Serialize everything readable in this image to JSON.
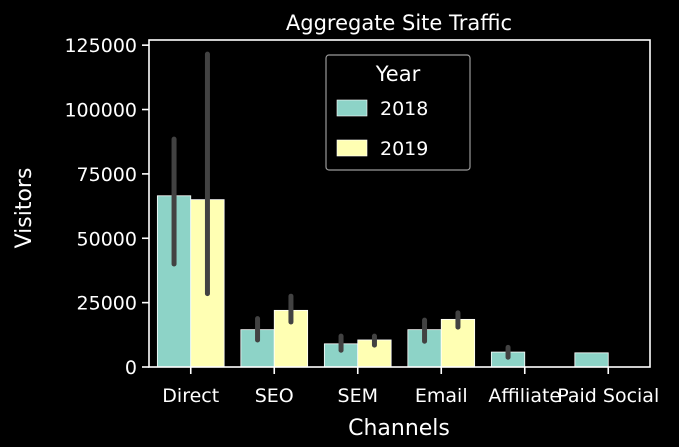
{
  "chart_data": {
    "type": "bar",
    "title": "Aggregate Site Traffic",
    "xlabel": "Channels",
    "ylabel": "Visitors",
    "categories": [
      "Direct",
      "SEO",
      "SEM",
      "Email",
      "Affiliate",
      "Paid Social"
    ],
    "ylim": [
      0,
      127000
    ],
    "yticks": [
      0,
      25000,
      50000,
      75000,
      100000,
      125000
    ],
    "ytick_labels": [
      "0",
      "25000",
      "50000",
      "75000",
      "100000",
      "125000"
    ],
    "legend": {
      "title": "Year",
      "placement": "top-center"
    },
    "grid": false,
    "series": [
      {
        "name": "2018",
        "color": "#8dd3c7",
        "values": [
          66500,
          14500,
          9000,
          14500,
          5800,
          5500
        ],
        "error_low": [
          40000,
          10500,
          6500,
          10000,
          3800,
          null
        ],
        "error_high": [
          88500,
          18800,
          12000,
          18200,
          7600,
          null
        ]
      },
      {
        "name": "2019",
        "color": "#ffffb3",
        "values": [
          65000,
          22000,
          10500,
          18500,
          null,
          null
        ],
        "error_low": [
          28500,
          17500,
          8500,
          15500,
          null,
          null
        ],
        "error_high": [
          121500,
          27500,
          12000,
          21000,
          null,
          null
        ]
      }
    ],
    "colors": {
      "background": "#000000",
      "axes": "#ffffff",
      "errorbar": "#424242"
    }
  }
}
